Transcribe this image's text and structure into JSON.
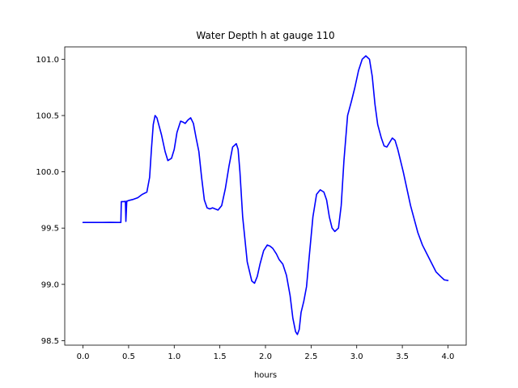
{
  "chart_data": {
    "type": "line",
    "title": "Water Depth h at gauge 110",
    "xlabel": "hours",
    "ylabel": "",
    "xlim": [
      -0.2,
      4.2
    ],
    "ylim": [
      98.46,
      101.11
    ],
    "grid": false,
    "x_ticks": [
      0.0,
      0.5,
      1.0,
      1.5,
      2.0,
      2.5,
      3.0,
      3.5,
      4.0
    ],
    "x_tick_labels": [
      "0.0",
      "0.5",
      "1.0",
      "1.5",
      "2.0",
      "2.5",
      "3.0",
      "3.5",
      "4.0"
    ],
    "y_ticks": [
      98.5,
      99.0,
      99.5,
      100.0,
      100.5,
      101.0
    ],
    "y_tick_labels": [
      "98.5",
      "99.0",
      "99.5",
      "100.0",
      "100.5",
      "101.0"
    ],
    "colors": {
      "line": "#0000ff",
      "axes": "#000000",
      "background": "#ffffff"
    },
    "series": [
      {
        "x": [
          0.0,
          0.1,
          0.2,
          0.3,
          0.38,
          0.415,
          0.42,
          0.45,
          0.465,
          0.47,
          0.48,
          0.485,
          0.49,
          0.5,
          0.55,
          0.6,
          0.65,
          0.7,
          0.73,
          0.75,
          0.77,
          0.79,
          0.81,
          0.83,
          0.86,
          0.9,
          0.93,
          0.97,
          1.0,
          1.03,
          1.07,
          1.1,
          1.12,
          1.15,
          1.18,
          1.21,
          1.24,
          1.27,
          1.3,
          1.33,
          1.36,
          1.39,
          1.42,
          1.45,
          1.48,
          1.52,
          1.56,
          1.6,
          1.64,
          1.68,
          1.7,
          1.72,
          1.75,
          1.8,
          1.85,
          1.88,
          1.91,
          1.94,
          1.98,
          2.02,
          2.05,
          2.08,
          2.12,
          2.15,
          2.19,
          2.23,
          2.27,
          2.3,
          2.33,
          2.35,
          2.37,
          2.39,
          2.42,
          2.45,
          2.48,
          2.52,
          2.56,
          2.6,
          2.64,
          2.67,
          2.7,
          2.73,
          2.76,
          2.8,
          2.83,
          2.86,
          2.9,
          2.94,
          2.98,
          3.02,
          3.06,
          3.1,
          3.14,
          3.17,
          3.2,
          3.23,
          3.27,
          3.3,
          3.33,
          3.36,
          3.39,
          3.42,
          3.45,
          3.48,
          3.51,
          3.55,
          3.59,
          3.63,
          3.67,
          3.72,
          3.77,
          3.82,
          3.87,
          3.92,
          3.96,
          4.0
        ],
        "y": [
          99.55,
          99.55,
          99.55,
          99.551,
          99.55,
          99.55,
          99.735,
          99.735,
          99.738,
          99.56,
          99.74,
          99.74,
          99.742,
          99.745,
          99.755,
          99.77,
          99.8,
          99.82,
          99.95,
          100.2,
          100.42,
          100.5,
          100.48,
          100.42,
          100.33,
          100.18,
          100.1,
          100.12,
          100.2,
          100.35,
          100.45,
          100.44,
          100.43,
          100.46,
          100.48,
          100.43,
          100.3,
          100.18,
          99.95,
          99.75,
          99.68,
          99.67,
          99.68,
          99.67,
          99.66,
          99.7,
          99.85,
          100.05,
          100.22,
          100.25,
          100.2,
          100.0,
          99.6,
          99.2,
          99.03,
          99.01,
          99.07,
          99.18,
          99.3,
          99.35,
          99.34,
          99.32,
          99.27,
          99.22,
          99.18,
          99.08,
          98.9,
          98.7,
          98.58,
          98.555,
          98.6,
          98.75,
          98.85,
          98.98,
          99.25,
          99.6,
          99.8,
          99.84,
          99.82,
          99.75,
          99.6,
          99.5,
          99.47,
          99.5,
          99.7,
          100.1,
          100.5,
          100.62,
          100.75,
          100.9,
          101.0,
          101.03,
          101.0,
          100.85,
          100.6,
          100.42,
          100.3,
          100.23,
          100.22,
          100.26,
          100.3,
          100.28,
          100.2,
          100.1,
          100.0,
          99.85,
          99.7,
          99.58,
          99.46,
          99.35,
          99.27,
          99.19,
          99.11,
          99.07,
          99.04,
          99.035
        ]
      }
    ]
  }
}
